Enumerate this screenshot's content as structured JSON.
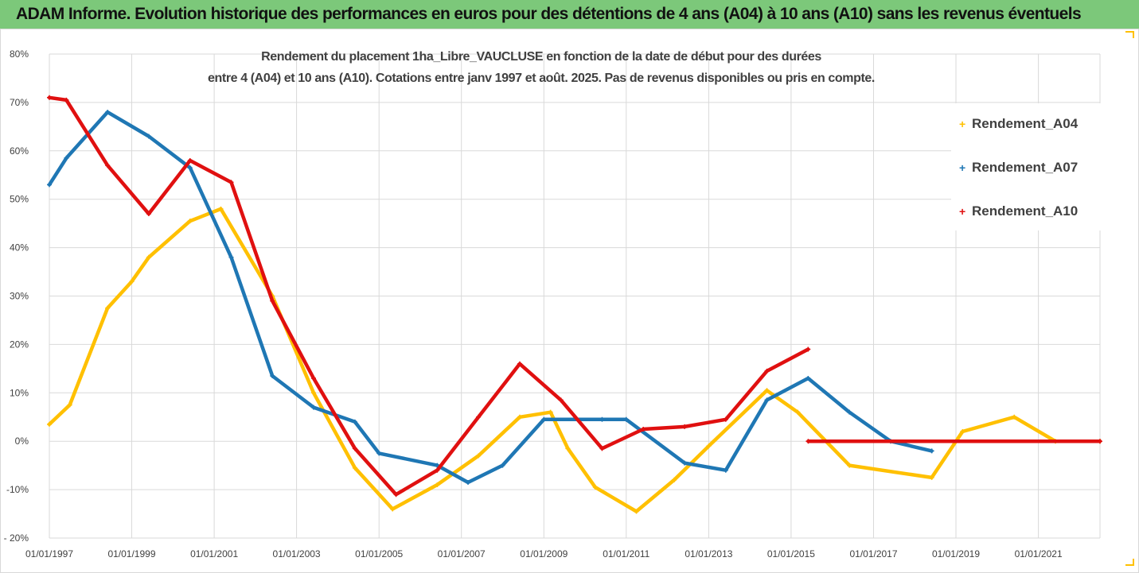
{
  "banner": {
    "title": "ADAM Informe. Evolution historique des performances en euros pour des détentions de 4 ans (A04) à 10 ans (A10) sans les revenus éventuels"
  },
  "colors": {
    "banner_bg": "#7cc87a",
    "A04": "#ffc000",
    "A07": "#1f77b4",
    "A10": "#e01010",
    "grid": "#d9d9d9"
  },
  "chart_data": {
    "type": "line",
    "title_line1": "Rendement du placement 1ha_Libre_VAUCLUSE en fonction de la date de début pour des durées",
    "title_line2": "entre 4 (A04) et 10 ans (A10). Cotations entre janv 1997 et août. 2025. Pas de revenus disponibles ou pris en compte.",
    "x_axis": {
      "min": "1997-01-01",
      "max": "2022-07-01",
      "tick_labels": [
        "01/01/1997",
        "01/01/1999",
        "01/01/2001",
        "01/01/2003",
        "01/01/2005",
        "01/01/2007",
        "01/01/2009",
        "01/01/2011",
        "01/01/2013",
        "01/01/2015",
        "01/01/2017",
        "01/01/2019",
        "01/01/2021"
      ]
    },
    "y_axis": {
      "min": -20,
      "max": 80,
      "step": 10,
      "unit": "%",
      "tick_labels": [
        "- 20%",
        "-10%",
        "0%",
        "10%",
        "20%",
        "30%",
        "40%",
        "50%",
        "60%",
        "70%",
        "80%"
      ]
    },
    "grid": true,
    "legend_position": "right",
    "series": [
      {
        "name": "Rendement_A04",
        "marker": "+",
        "points": [
          [
            "1997-01-01",
            3.5
          ],
          [
            "1997-07-01",
            7.5
          ],
          [
            "1998-06-01",
            27.5
          ],
          [
            "1999-01-01",
            33
          ],
          [
            "1999-06-01",
            38
          ],
          [
            "2000-06-01",
            45.5
          ],
          [
            "2001-03-01",
            48
          ],
          [
            "2002-06-01",
            30
          ],
          [
            "2003-06-01",
            10
          ],
          [
            "2004-06-01",
            -5.5
          ],
          [
            "2005-05-01",
            -14
          ],
          [
            "2006-06-01",
            -9
          ],
          [
            "2007-06-01",
            -3
          ],
          [
            "2008-06-01",
            5
          ],
          [
            "2009-03-01",
            6
          ],
          [
            "2009-08-01",
            -1.5
          ],
          [
            "2010-04-01",
            -9.5
          ],
          [
            "2011-04-01",
            -14.5
          ],
          [
            "2012-03-01",
            -8
          ],
          [
            "2013-01-01",
            -1
          ],
          [
            "2014-06-01",
            10.5
          ],
          [
            "2015-03-01",
            6
          ],
          [
            "2016-06-01",
            -5
          ],
          [
            "2018-06-01",
            -7.5
          ],
          [
            "2019-03-01",
            2
          ],
          [
            "2020-06-01",
            5
          ],
          [
            "2021-06-01",
            0
          ],
          [
            "2022-07-01",
            0
          ]
        ]
      },
      {
        "name": "Rendement_A07",
        "marker": "+",
        "points": [
          [
            "1997-01-01",
            53
          ],
          [
            "1997-06-01",
            58.5
          ],
          [
            "1998-06-01",
            68
          ],
          [
            "1999-06-01",
            63
          ],
          [
            "2000-06-01",
            56.5
          ],
          [
            "2001-06-01",
            38
          ],
          [
            "2002-06-01",
            13.5
          ],
          [
            "2003-06-01",
            7
          ],
          [
            "2004-06-01",
            4
          ],
          [
            "2005-01-01",
            -2.5
          ],
          [
            "2006-06-01",
            -5
          ],
          [
            "2007-03-01",
            -8.5
          ],
          [
            "2008-01-01",
            -5
          ],
          [
            "2009-01-01",
            4.5
          ],
          [
            "2010-06-01",
            4.5
          ],
          [
            "2011-01-01",
            4.5
          ],
          [
            "2012-06-01",
            -4.5
          ],
          [
            "2013-06-01",
            -6
          ],
          [
            "2014-06-01",
            8.5
          ],
          [
            "2015-06-01",
            13
          ],
          [
            "2016-06-01",
            6
          ],
          [
            "2017-06-01",
            0
          ],
          [
            "2018-06-01",
            -2
          ]
        ]
      },
      {
        "name": "Rendement_A10",
        "marker": "+",
        "points": [
          [
            "1997-01-01",
            71
          ],
          [
            "1997-06-01",
            70.5
          ],
          [
            "1998-06-01",
            57
          ],
          [
            "1999-06-01",
            47
          ],
          [
            "2000-06-01",
            58
          ],
          [
            "2001-06-01",
            53.5
          ],
          [
            "2002-06-01",
            29
          ],
          [
            "2003-06-01",
            13
          ],
          [
            "2004-06-01",
            -1.5
          ],
          [
            "2005-06-01",
            -11
          ],
          [
            "2006-06-01",
            -6
          ],
          [
            "2007-06-01",
            5
          ],
          [
            "2008-06-01",
            16
          ],
          [
            "2009-06-01",
            8.5
          ],
          [
            "2010-06-01",
            -1.5
          ],
          [
            "2011-06-01",
            2.5
          ],
          [
            "2012-06-01",
            3
          ],
          [
            "2013-06-01",
            4.5
          ],
          [
            "2014-06-01",
            14.5
          ],
          [
            "2015-06-01",
            19
          ],
          [
            "2015-06-02",
            0
          ],
          [
            "2022-07-01",
            0
          ]
        ]
      }
    ]
  }
}
